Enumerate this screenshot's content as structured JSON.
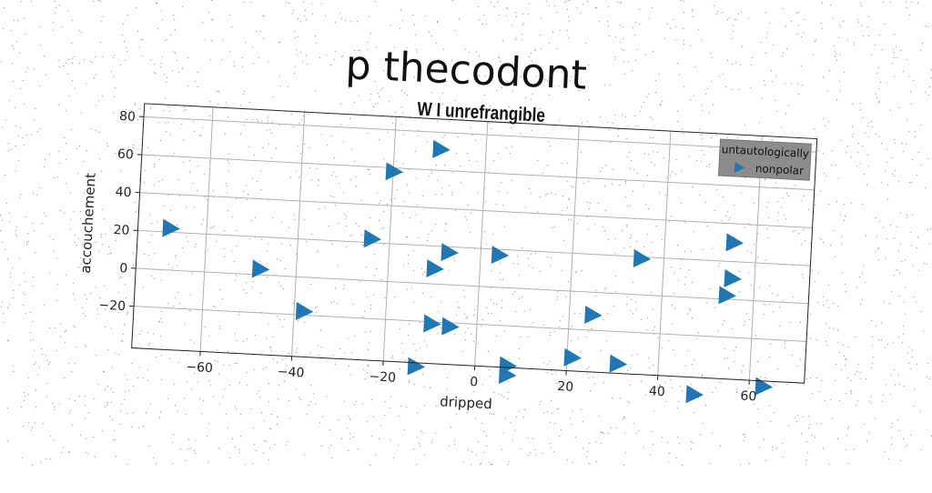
{
  "figure": {
    "title": "p thecodont"
  },
  "chart_data": {
    "type": "scatter",
    "title": "W I unrefrangible",
    "xlabel": "dripped",
    "ylabel": "accouchement",
    "xlim": [
      -75,
      72
    ],
    "ylim": [
      -42,
      87
    ],
    "xticks": [
      -60,
      -40,
      -20,
      0,
      20,
      40,
      60
    ],
    "yticks": [
      -20,
      0,
      20,
      40,
      60,
      80
    ],
    "grid": true,
    "legend": {
      "title": "untautologically",
      "position": "top-right"
    },
    "marker": "triangle-right",
    "color": "#1f77b4",
    "series": [
      {
        "name": "nonpolar",
        "points": [
          [
            -68,
            22
          ],
          [
            -48,
            3
          ],
          [
            -38,
            -18
          ],
          [
            -24,
            22
          ],
          [
            -20,
            58
          ],
          [
            -10,
            71
          ],
          [
            -10,
            8
          ],
          [
            -7,
            17
          ],
          [
            -10,
            -21
          ],
          [
            -6,
            -22
          ],
          [
            -13,
            -44
          ],
          [
            4,
            17
          ],
          [
            7,
            -41
          ],
          [
            7,
            -46
          ],
          [
            21,
            -35
          ],
          [
            25,
            -12
          ],
          [
            31,
            -37
          ],
          [
            35,
            19
          ],
          [
            48,
            -51
          ],
          [
            54,
            2
          ],
          [
            55,
            11
          ],
          [
            55,
            30
          ],
          [
            63,
            -45
          ]
        ]
      }
    ]
  }
}
